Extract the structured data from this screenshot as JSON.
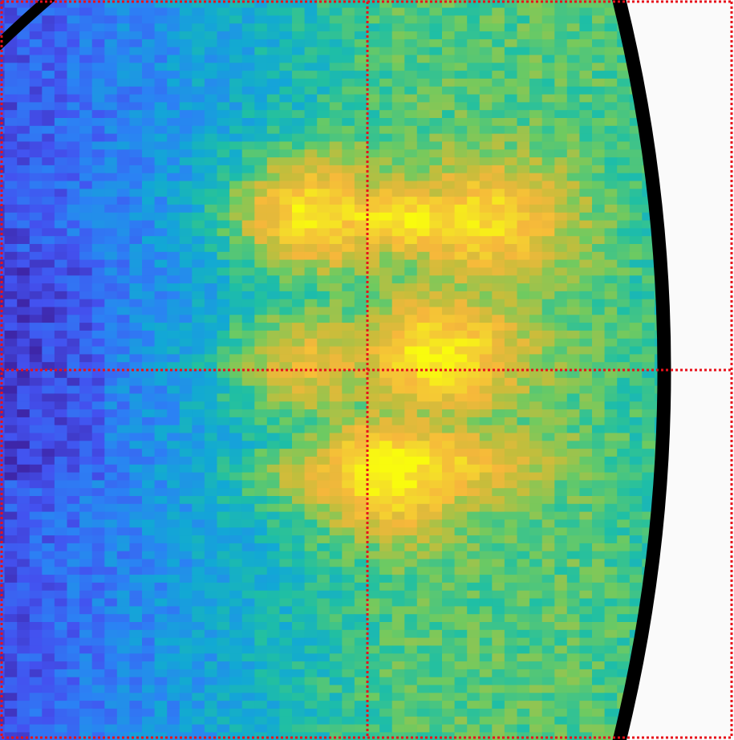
{
  "chart_data": {
    "type": "heatmap",
    "projection": "polar-sector",
    "colormap": "parula",
    "colormap_stops": [
      "#3e26a8",
      "#4352f0",
      "#2b82f4",
      "#12a8d5",
      "#1fbfa4",
      "#6fca60",
      "#c6bd3b",
      "#f6b73b",
      "#f4d72e",
      "#f9fb0e"
    ],
    "grid": true,
    "grid_color": "#e8101a",
    "grid_style": "dotted",
    "boundary_color": "#000000",
    "colorbar": false,
    "title": "",
    "xlabel": "",
    "ylabel": "",
    "value_range": [
      0,
      1
    ],
    "background": "#fafafa",
    "hotspots": [
      {
        "name": "upper-band",
        "u": 0.42,
        "v": 0.29,
        "value": 0.97
      },
      {
        "name": "upper-right-band",
        "u": 0.66,
        "v": 0.3,
        "value": 0.85
      },
      {
        "name": "lower-band",
        "u": 0.52,
        "v": 0.64,
        "value": 0.96
      },
      {
        "name": "inner-left-blob",
        "u": 0.41,
        "v": 0.49,
        "value": 0.78
      },
      {
        "name": "inner-right-blob",
        "u": 0.6,
        "v": 0.48,
        "value": 0.9
      }
    ]
  }
}
